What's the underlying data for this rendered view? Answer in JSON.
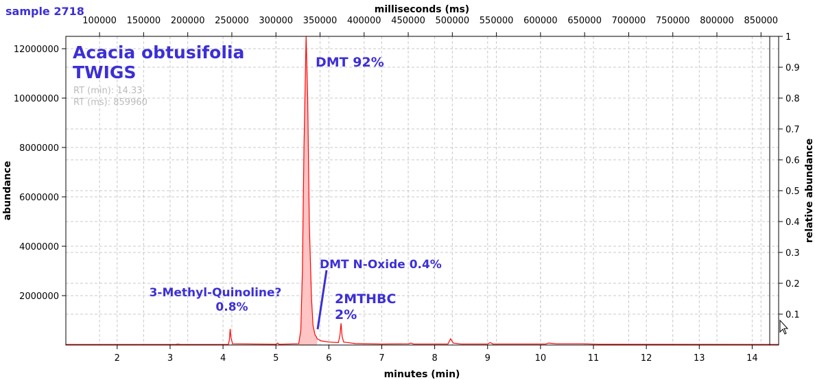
{
  "sample_label": "sample 2718",
  "chart_data": {
    "type": "line",
    "title": "Acacia obtusifolia",
    "subtitle": "TWIGS",
    "overlay_text": [
      "RT (min): 14.33",
      "RT (ms): 859960"
    ],
    "xlabel": "minutes (min)",
    "x2label": "milliseconds (ms)",
    "ylabel": "abundance",
    "y2label": "relative abundance",
    "xlim": [
      1.03,
      14.5
    ],
    "ylim": [
      0,
      12500000
    ],
    "y2lim": [
      0,
      1
    ],
    "x_ticks": [
      2,
      3,
      4,
      5,
      6,
      7,
      8,
      9,
      10,
      11,
      12,
      13,
      14
    ],
    "x2_ticks": [
      100000,
      150000,
      200000,
      250000,
      300000,
      350000,
      400000,
      450000,
      500000,
      550000,
      600000,
      650000,
      700000,
      750000,
      800000,
      850000
    ],
    "y_ticks": [
      2000000,
      4000000,
      6000000,
      8000000,
      10000000,
      12000000
    ],
    "y2_ticks": [
      0.1,
      0.2,
      0.3,
      0.4,
      0.5,
      0.6,
      0.7,
      0.8,
      0.9,
      1
    ],
    "grid": true,
    "series_color": "#ff0000",
    "fill_color": "#ffc4c4",
    "filled_peak_range": [
      5.43,
      5.78
    ],
    "points": [
      [
        1.03,
        20000
      ],
      [
        3.1,
        20000
      ],
      [
        3.15,
        40000
      ],
      [
        3.2,
        20000
      ],
      [
        4.1,
        20000
      ],
      [
        4.12,
        200000
      ],
      [
        4.135,
        650000
      ],
      [
        4.15,
        300000
      ],
      [
        4.18,
        50000
      ],
      [
        5.0,
        30000
      ],
      [
        5.03,
        80000
      ],
      [
        5.06,
        30000
      ],
      [
        5.43,
        50000
      ],
      [
        5.47,
        600000
      ],
      [
        5.5,
        3000000
      ],
      [
        5.53,
        8000000
      ],
      [
        5.57,
        12500000
      ],
      [
        5.6,
        10000000
      ],
      [
        5.63,
        5000000
      ],
      [
        5.67,
        2000000
      ],
      [
        5.7,
        800000
      ],
      [
        5.74,
        400000
      ],
      [
        5.76,
        350000
      ],
      [
        5.78,
        250000
      ],
      [
        5.85,
        170000
      ],
      [
        6.0,
        120000
      ],
      [
        6.18,
        100000
      ],
      [
        6.21,
        400000
      ],
      [
        6.23,
        880000
      ],
      [
        6.25,
        350000
      ],
      [
        6.28,
        120000
      ],
      [
        6.5,
        60000
      ],
      [
        7.0,
        40000
      ],
      [
        7.5,
        50000
      ],
      [
        7.55,
        80000
      ],
      [
        7.6,
        40000
      ],
      [
        8.25,
        40000
      ],
      [
        8.3,
        250000
      ],
      [
        8.35,
        80000
      ],
      [
        8.5,
        40000
      ],
      [
        9.0,
        40000
      ],
      [
        9.05,
        100000
      ],
      [
        9.1,
        40000
      ],
      [
        10.1,
        40000
      ],
      [
        10.15,
        80000
      ],
      [
        10.3,
        50000
      ],
      [
        10.8,
        50000
      ],
      [
        11.1,
        30000
      ],
      [
        14.5,
        20000
      ]
    ],
    "annotations": [
      {
        "text": "DMT 92%"
      },
      {
        "text": "DMT N-Oxide 0.4%"
      },
      {
        "text": "3-Methyl-Quinoline?"
      },
      {
        "text": "0.8%"
      },
      {
        "text": "2MTHBC"
      },
      {
        "text": "2%"
      }
    ],
    "annotation_color": "#3c2fd6"
  }
}
